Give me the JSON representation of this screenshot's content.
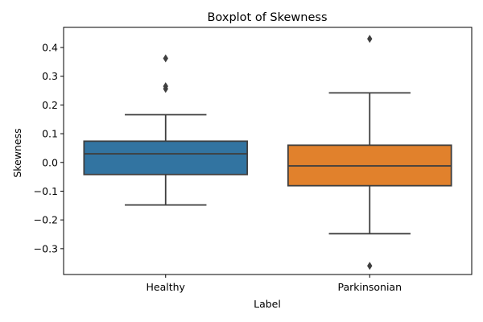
{
  "chart_data": {
    "type": "boxplot",
    "title": "Boxplot of Skewness",
    "xlabel": "Label",
    "ylabel": "Skewness",
    "ylim": [
      -0.39,
      0.47
    ],
    "yticks": [
      -0.3,
      -0.2,
      -0.1,
      0.0,
      0.1,
      0.2,
      0.3,
      0.4
    ],
    "ytick_labels": [
      "−0.3",
      "−0.2",
      "−0.1",
      "0.0",
      "0.1",
      "0.2",
      "0.3",
      "0.4"
    ],
    "categories": [
      "Healthy",
      "Parkinsonian"
    ],
    "grid": false,
    "series": [
      {
        "category": "Healthy",
        "color": "#3274a1",
        "whisker_low": -0.148,
        "q1": -0.042,
        "median": 0.03,
        "q3": 0.074,
        "whisker_high": 0.166,
        "outliers": [
          0.362,
          0.265,
          0.256
        ]
      },
      {
        "category": "Parkinsonian",
        "color": "#e1812c",
        "whisker_low": -0.248,
        "q1": -0.081,
        "median": -0.012,
        "q3": 0.06,
        "whisker_high": 0.242,
        "outliers": [
          0.43,
          -0.36
        ]
      }
    ]
  }
}
